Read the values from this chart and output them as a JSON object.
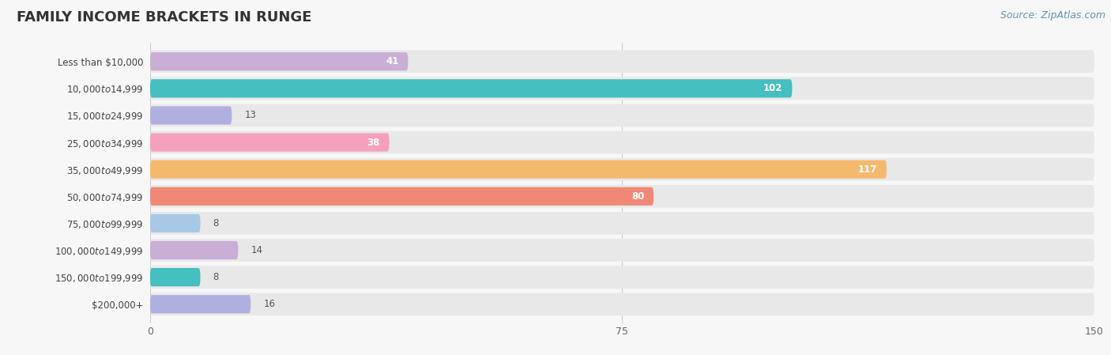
{
  "title": "FAMILY INCOME BRACKETS IN RUNGE",
  "source": "Source: ZipAtlas.com",
  "categories": [
    "Less than $10,000",
    "$10,000 to $14,999",
    "$15,000 to $24,999",
    "$25,000 to $34,999",
    "$35,000 to $49,999",
    "$50,000 to $74,999",
    "$75,000 to $99,999",
    "$100,000 to $149,999",
    "$150,000 to $199,999",
    "$200,000+"
  ],
  "values": [
    41,
    102,
    13,
    38,
    117,
    80,
    8,
    14,
    8,
    16
  ],
  "colors": [
    "#c9aed6",
    "#45bfbf",
    "#b0b0e0",
    "#f5a0bc",
    "#f5b96e",
    "#f08878",
    "#a8c8e8",
    "#c9aed6",
    "#45bfbf",
    "#b0b0e0"
  ],
  "xlim": [
    0,
    150
  ],
  "xticks": [
    0,
    75,
    150
  ],
  "background_color": "#f7f7f7",
  "row_bg_color": "#e8e8e8",
  "title_fontsize": 13,
  "label_fontsize": 8.5,
  "value_fontsize": 8.5,
  "source_fontsize": 9
}
